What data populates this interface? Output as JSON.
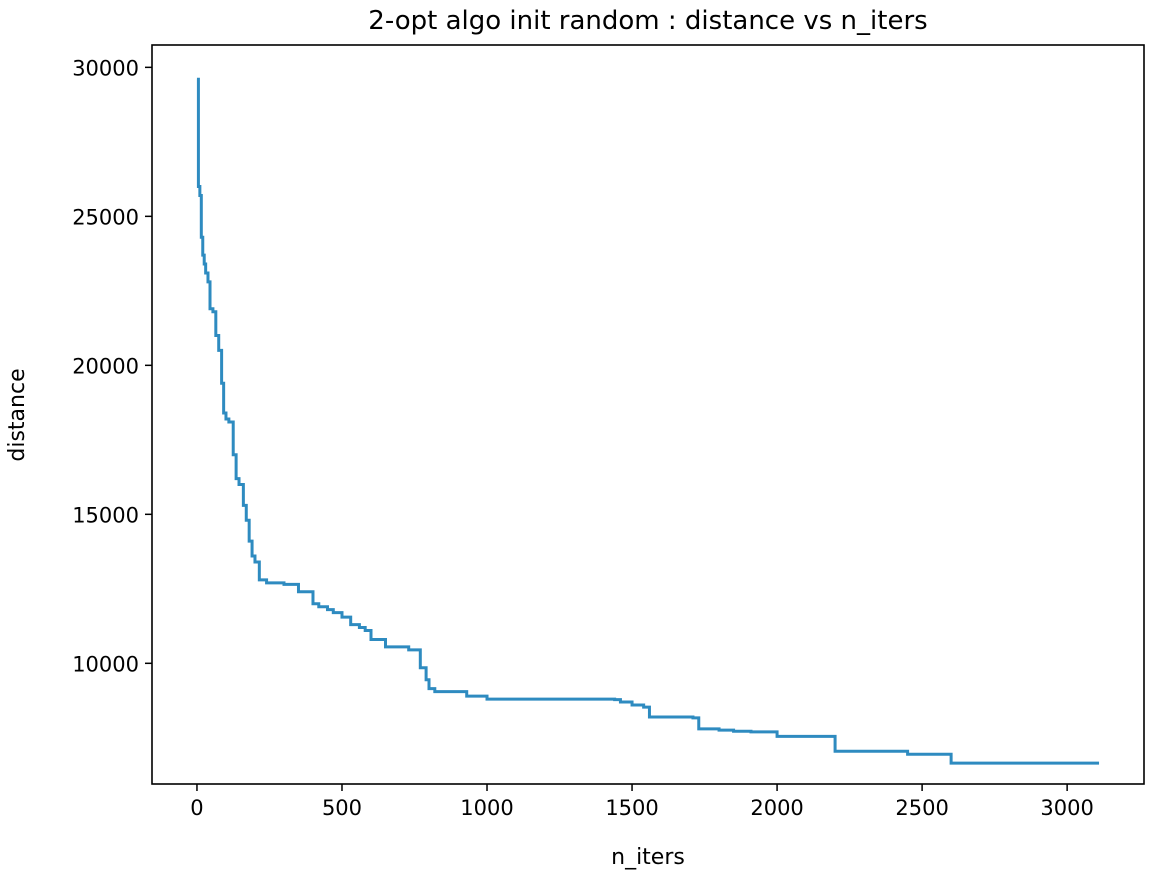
{
  "chart_data": {
    "type": "line",
    "title": "2-opt algo init random : distance vs n_iters",
    "xlabel": "n_iters",
    "ylabel": "distance",
    "xlim": [
      -155,
      3265
    ],
    "ylim": [
      5950,
      30750
    ],
    "xticks": [
      0,
      500,
      1000,
      1500,
      2000,
      2500,
      3000
    ],
    "yticks": [
      10000,
      15000,
      20000,
      25000,
      30000
    ],
    "grid": false,
    "colors": {
      "line": "#2e8bc0"
    },
    "series": [
      {
        "step": true,
        "x": [
          0,
          5,
          10,
          15,
          20,
          25,
          30,
          38,
          45,
          55,
          65,
          75,
          85,
          92,
          100,
          110,
          125,
          135,
          145,
          160,
          170,
          180,
          190,
          200,
          215,
          240,
          300,
          350,
          400,
          420,
          450,
          470,
          500,
          530,
          560,
          580,
          600,
          650,
          730,
          770,
          790,
          800,
          820,
          930,
          1000,
          1200,
          1440,
          1460,
          1500,
          1540,
          1560,
          1710,
          1730,
          1800,
          1850,
          1910,
          2000,
          2140,
          2200,
          2420,
          2450,
          2565,
          2600,
          3110
        ],
        "y": [
          29600,
          26000,
          25700,
          24300,
          23700,
          23400,
          23100,
          22800,
          21900,
          21800,
          21000,
          20500,
          19400,
          18400,
          18200,
          18100,
          17000,
          16200,
          16000,
          15300,
          14800,
          14100,
          13600,
          13400,
          12800,
          12700,
          12650,
          12400,
          12000,
          11900,
          11800,
          11700,
          11550,
          11300,
          11200,
          11100,
          10800,
          10550,
          10450,
          9850,
          9450,
          9150,
          9050,
          8900,
          8800,
          8800,
          8780,
          8700,
          8600,
          8530,
          8200,
          8170,
          7800,
          7760,
          7720,
          7700,
          7550,
          7550,
          7050,
          7050,
          6950,
          6950,
          6650,
          6650
        ]
      }
    ]
  }
}
